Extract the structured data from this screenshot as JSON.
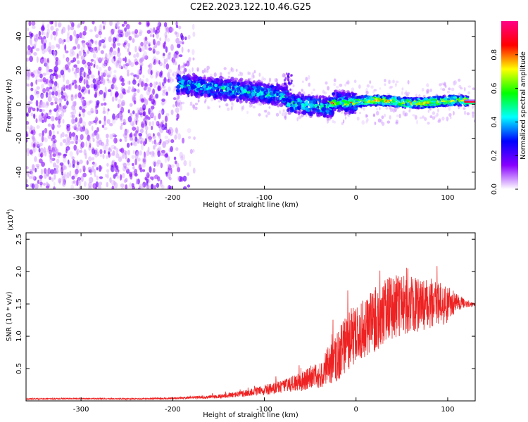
{
  "title": "C2E2.2023.122.10.46.G25",
  "colors": {
    "snr_line": "#ee2222",
    "frame": "#000000"
  },
  "chart_data": [
    {
      "type": "heatmap",
      "xlabel": "Height of straight line (km)",
      "ylabel": "Frequency (Hz)",
      "xlim": [
        -360,
        130
      ],
      "ylim": [
        -50,
        49
      ],
      "x_ticks": [
        -300,
        -200,
        -100,
        0,
        100
      ],
      "y_ticks": [
        -40,
        -20,
        0,
        20,
        40
      ],
      "colorbar": {
        "label": "Normalized spectral amplitude",
        "range": [
          0,
          1
        ],
        "ticks": [
          "0.0",
          "0.2",
          "0.4",
          "0.6",
          "0.8"
        ],
        "tick_values": [
          0,
          0.2,
          0.4,
          0.6,
          0.8
        ],
        "colormap": [
          "#ffffff",
          "#8800ff",
          "#0000ff",
          "#00ffff",
          "#00ff00",
          "#ffff00",
          "#ff0000",
          "#ff0088"
        ]
      },
      "regions": [
        {
          "name": "noise",
          "x_range": [
            -360,
            -180
          ],
          "freq_range": [
            -50,
            49
          ],
          "amplitude": 0.1
        },
        {
          "name": "signal-band",
          "x_range": [
            -195,
            0
          ],
          "center_freq_start": 12,
          "center_freq_end": 0,
          "width_hz": 12,
          "amplitude": 0.3
        },
        {
          "name": "signal-band",
          "x_range": [
            -30,
            130
          ],
          "center_freq": 1.5,
          "width_hz": 5,
          "amplitude": 0.6
        }
      ]
    },
    {
      "type": "line",
      "xlabel": "Height of straight line (km)",
      "ylabel": "SNR (10 * v/v)",
      "scale_label": "(x10^4)",
      "scale_base": "(x10",
      "scale_exp": "4",
      "scale_close": ")",
      "xlim": [
        -360,
        130
      ],
      "ylim": [
        0,
        2.6
      ],
      "x_ticks": [
        -300,
        -200,
        -100,
        0,
        100
      ],
      "y_ticks": [
        0.5,
        1.0,
        1.5,
        2.0,
        2.5
      ],
      "y_tick_labels": [
        "0.5",
        "1.0",
        "1.5",
        "2.0",
        "2.5"
      ],
      "series": [
        {
          "x": [
            -360,
            -300,
            -250,
            -200,
            -180,
            -150,
            -120,
            -100,
            -80,
            -60,
            -40,
            -30,
            -20,
            -10,
            0,
            20,
            40,
            60,
            80,
            100,
            110,
            120,
            130
          ],
          "y_mean": [
            0.03,
            0.035,
            0.03,
            0.04,
            0.05,
            0.07,
            0.12,
            0.17,
            0.22,
            0.3,
            0.4,
            0.55,
            0.7,
            0.9,
            1.05,
            1.25,
            1.45,
            1.5,
            1.5,
            1.5,
            1.55,
            1.5,
            1.48
          ],
          "y_spread": [
            0.01,
            0.01,
            0.01,
            0.015,
            0.02,
            0.03,
            0.05,
            0.08,
            0.1,
            0.15,
            0.2,
            0.3,
            0.4,
            0.45,
            0.45,
            0.5,
            0.5,
            0.45,
            0.4,
            0.3,
            0.15,
            0.05,
            0.03
          ]
        }
      ]
    }
  ]
}
